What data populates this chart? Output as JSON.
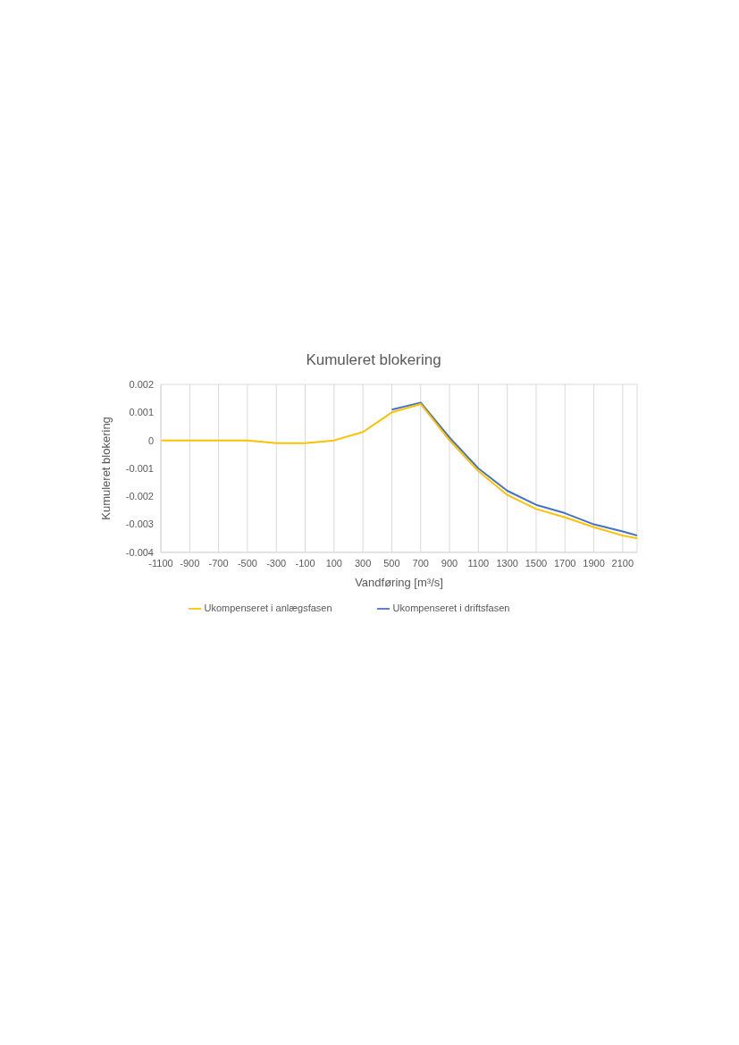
{
  "chart_data": {
    "type": "line",
    "title": "Kumuleret blokering",
    "xlabel": "Vandføring [m³/s]",
    "ylabel": "Kumuleret blokering",
    "x": [
      -1100,
      -900,
      -700,
      -500,
      -300,
      -100,
      100,
      300,
      500,
      700,
      900,
      1100,
      1300,
      1500,
      1700,
      1900,
      2100,
      2200
    ],
    "series": [
      {
        "name": "Ukompenseret i driftsfasen",
        "color": "#4472c4",
        "values": [
          null,
          null,
          null,
          null,
          null,
          null,
          null,
          null,
          0.0011,
          0.00135,
          0.0001,
          -0.001,
          -0.0018,
          -0.0023,
          -0.0026,
          -0.003,
          -0.00325,
          -0.0034
        ]
      },
      {
        "name": "Ukompenseret i anlægsfasen",
        "color": "#ffc000",
        "values": [
          0,
          0,
          0,
          0,
          -0.0001,
          -0.0001,
          0,
          0.0003,
          0.001,
          0.0013,
          0,
          -0.0011,
          -0.00195,
          -0.00245,
          -0.00275,
          -0.0031,
          -0.0034,
          -0.0035
        ]
      }
    ],
    "xlim": [
      -1100,
      2200
    ],
    "xticks": [
      -1100,
      -900,
      -700,
      -500,
      -300,
      -100,
      100,
      300,
      500,
      700,
      900,
      1100,
      1300,
      1500,
      1700,
      1900,
      2100
    ],
    "ylim": [
      -0.004,
      0.002
    ],
    "yticks": [
      -0.004,
      -0.003,
      -0.002,
      -0.001,
      0,
      0.001,
      0.002
    ],
    "grid": true,
    "legend": "bottom",
    "marker": "none",
    "line_style": "solid"
  }
}
